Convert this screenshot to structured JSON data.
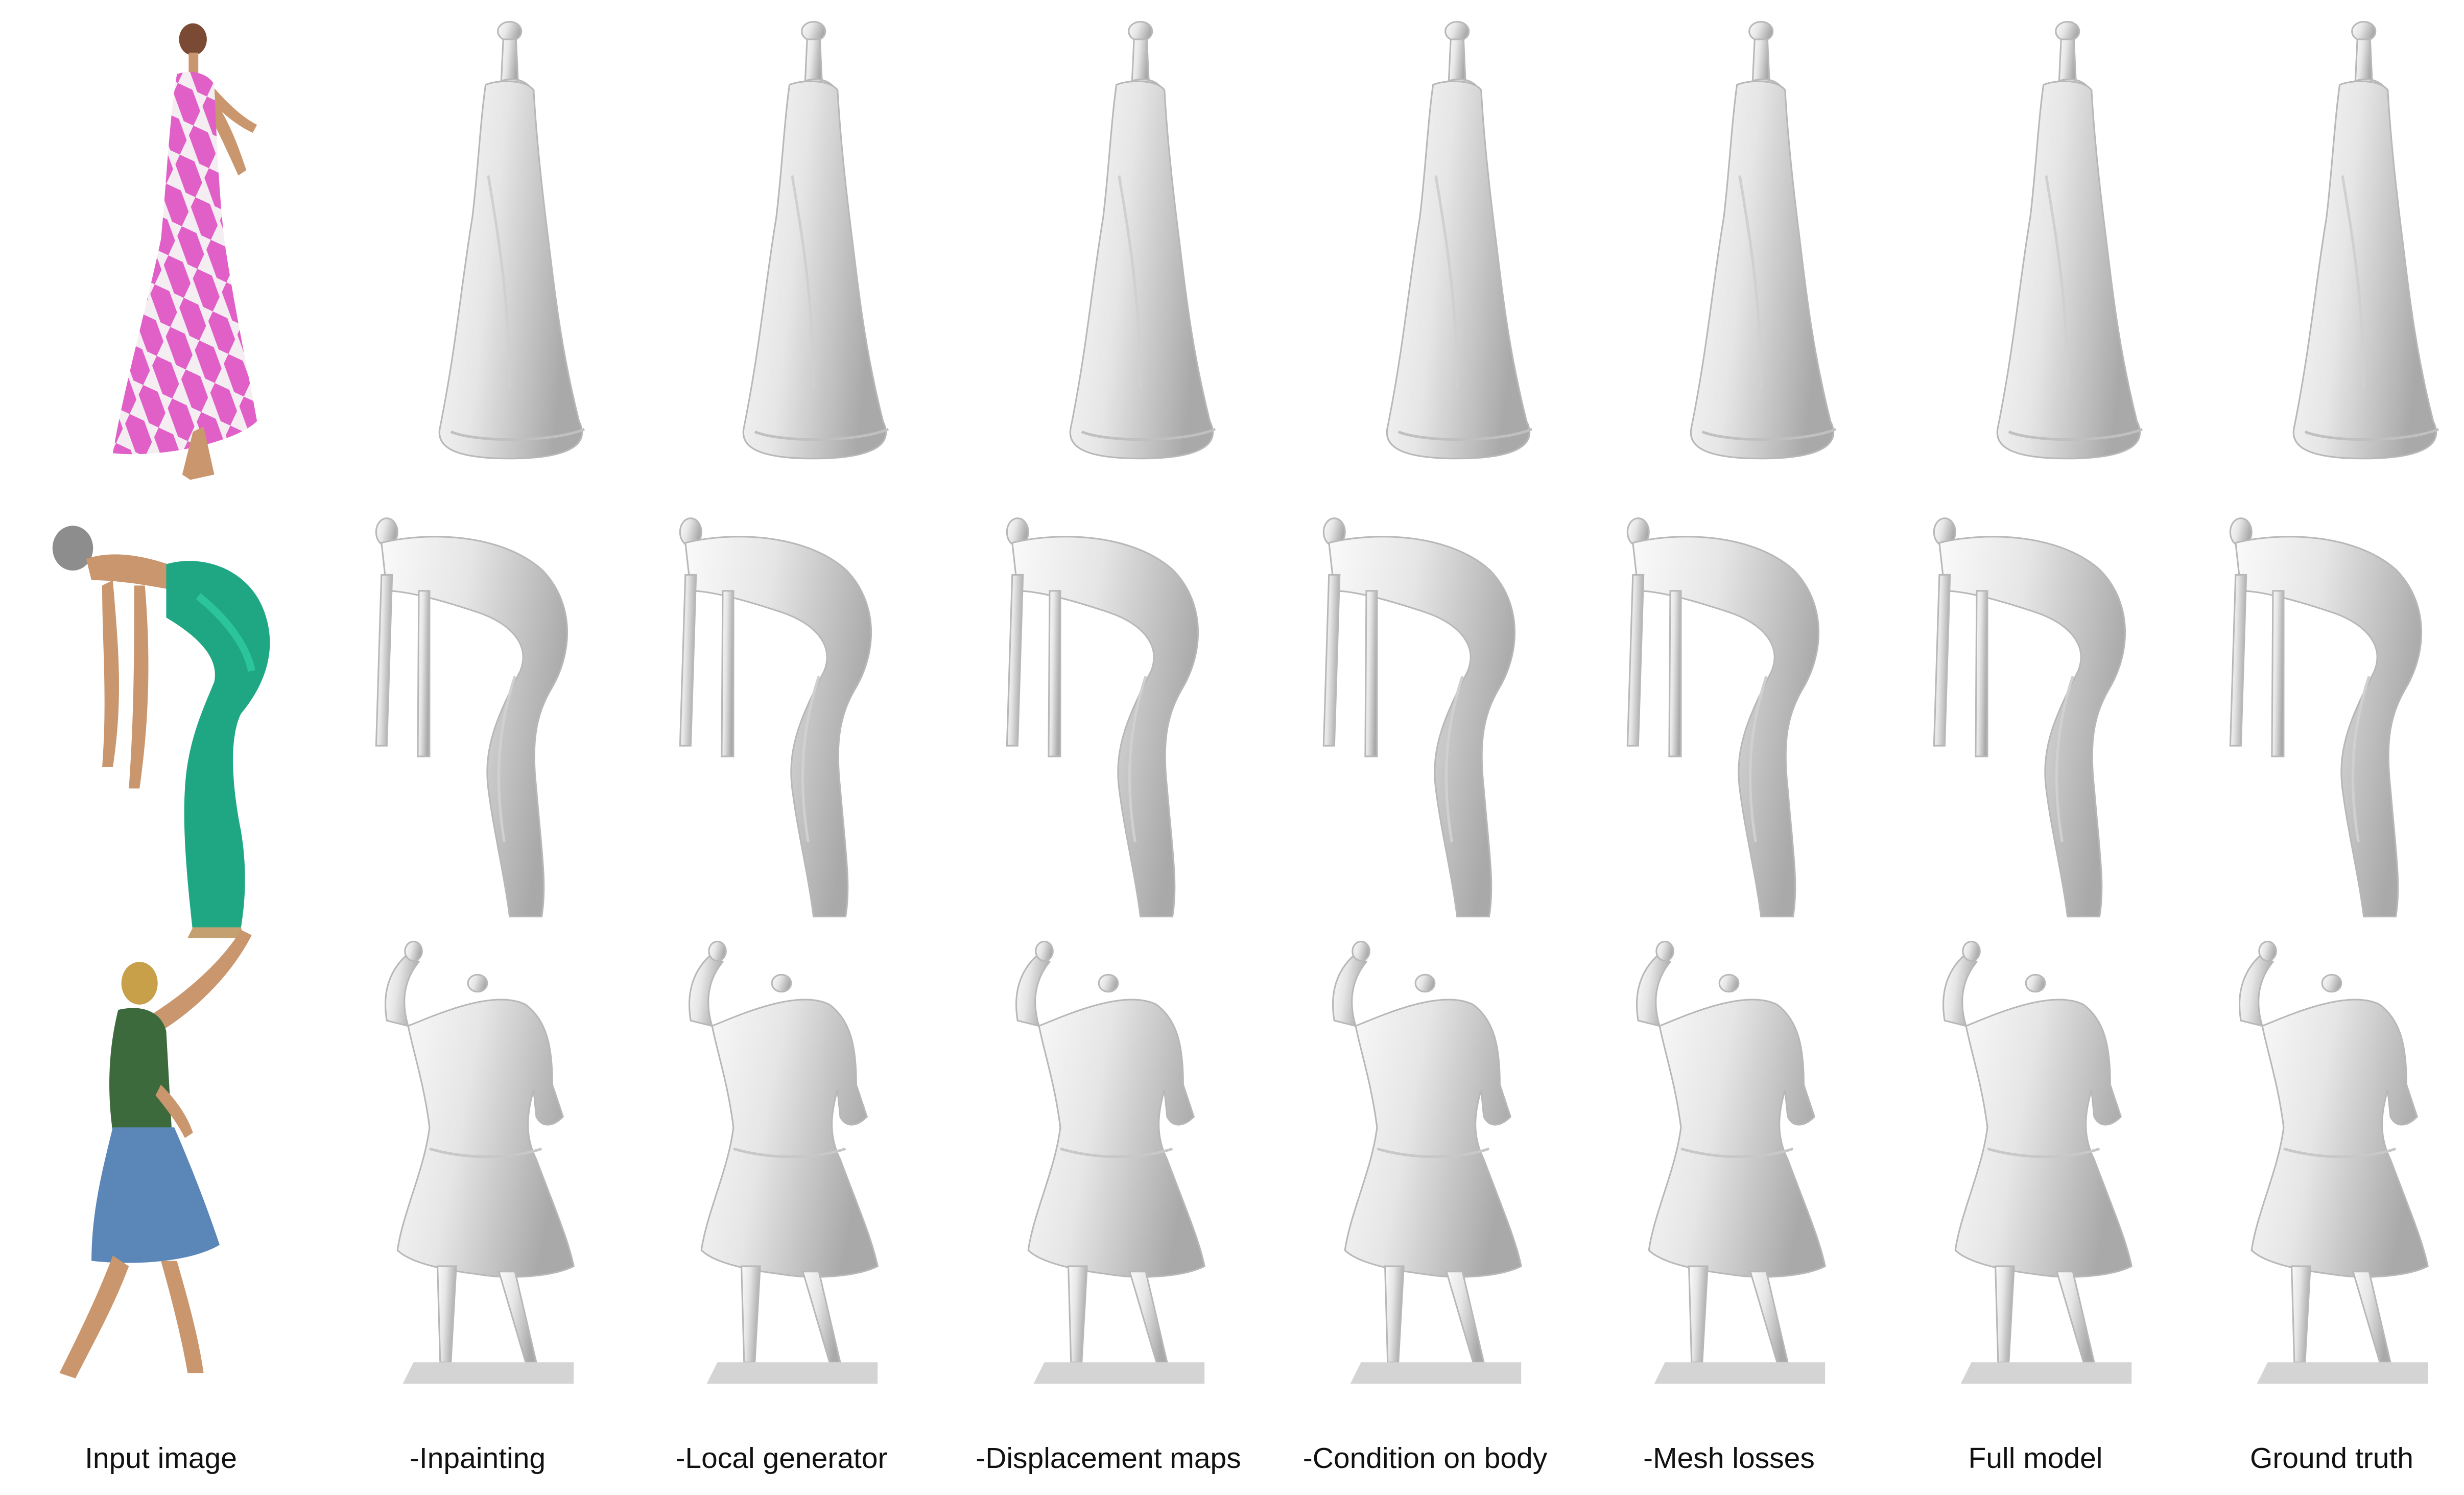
{
  "figure": {
    "columns": [
      {
        "label": "Input image",
        "kind": "input"
      },
      {
        "label": "-Inpainting",
        "kind": "mesh"
      },
      {
        "label": "-Local generator",
        "kind": "mesh"
      },
      {
        "label": "-Displacement maps",
        "kind": "mesh"
      },
      {
        "label": "-Condition on body",
        "kind": "mesh"
      },
      {
        "label": "-Mesh losses",
        "kind": "mesh"
      },
      {
        "label": "Full model",
        "kind": "mesh"
      },
      {
        "label": "Ground truth",
        "kind": "mesh"
      }
    ],
    "rows": [
      {
        "pose": "standing-dress",
        "garment_colors": [
          "#e060c8",
          "#f4eef2"
        ]
      },
      {
        "pose": "bending-dress",
        "garment_colors": [
          "#1fa784",
          "#2cc49a"
        ]
      },
      {
        "pose": "arm-raised-skirt",
        "garment_colors": [
          "#3c6a3c",
          "#5a86b8"
        ]
      }
    ],
    "colors": {
      "mesh": "#e6e6e6",
      "mesh_shadow": "#a9a9a9",
      "skin": "#c9966e"
    }
  }
}
